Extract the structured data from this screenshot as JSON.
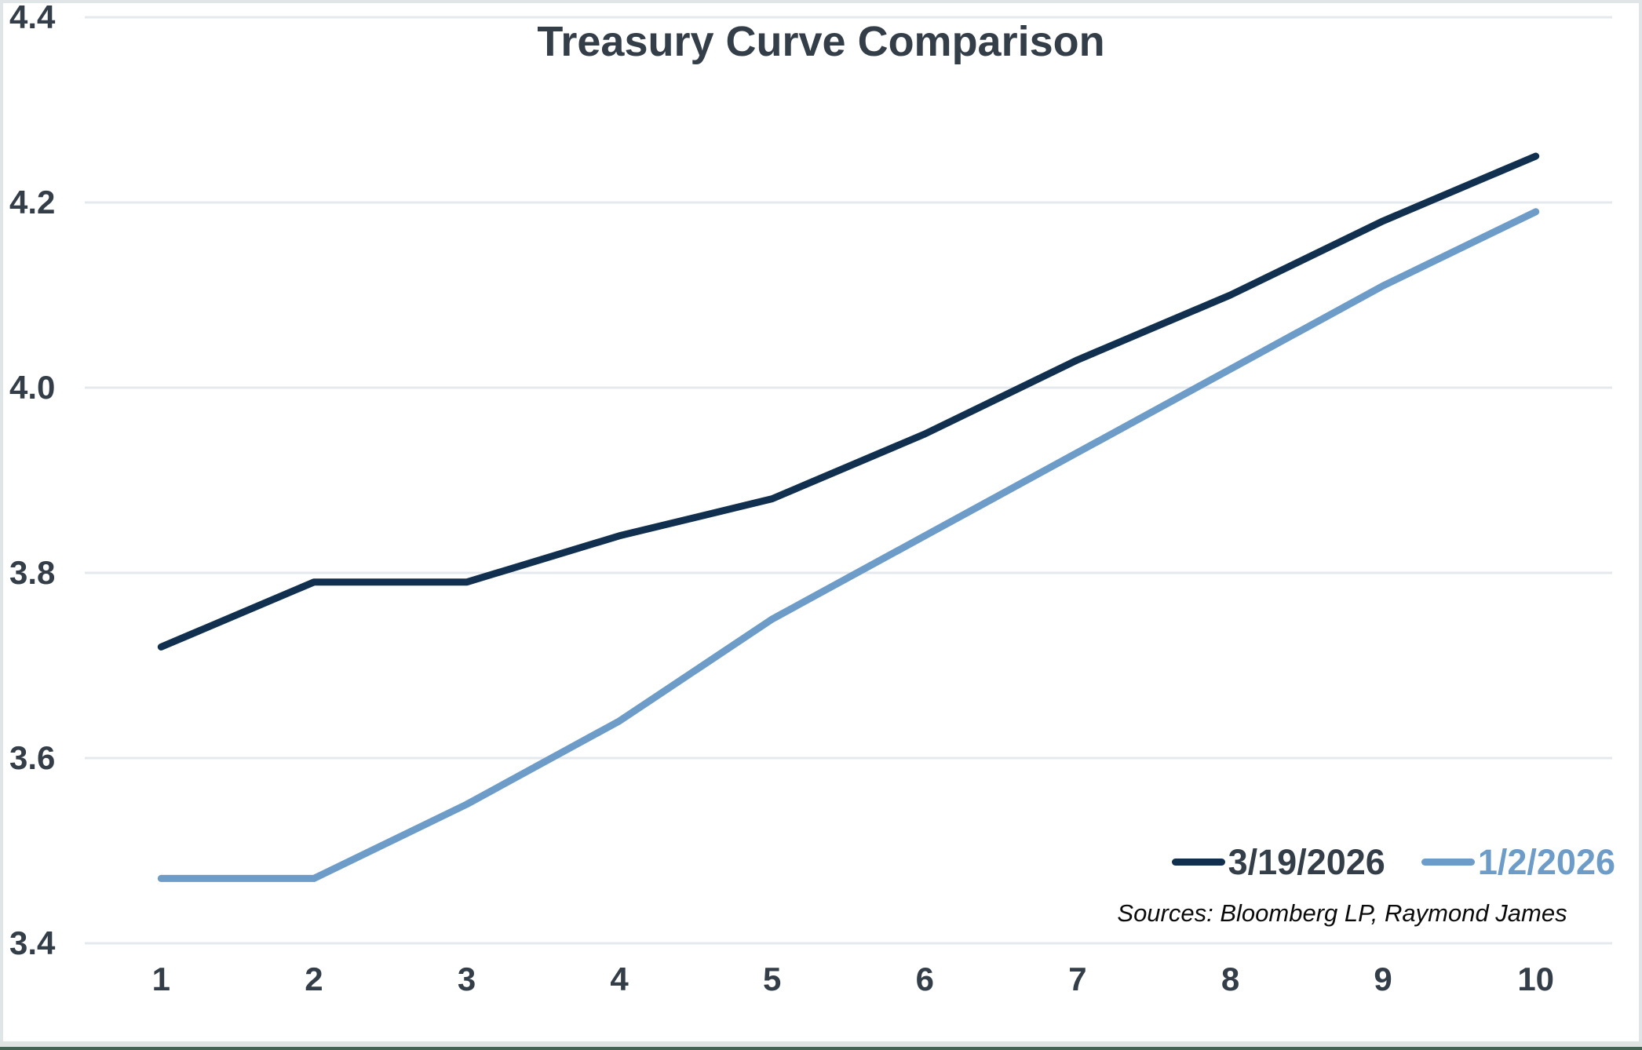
{
  "title": "Treasury Curve Comparison",
  "sources_note": "Sources: Bloomberg LP, Raymond James",
  "colors": {
    "title_text": "#333e48",
    "axis_text": "#333e48",
    "gridline": "#e4e9ed",
    "series_dark_navy": "#11304f",
    "series_light_blue": "#6d9cc8",
    "frame_border": "#e0e6e7",
    "bottom_bar_green": "#456353"
  },
  "chart_data": {
    "type": "line",
    "title": "Treasury Curve Comparison",
    "categories": [
      "1",
      "2",
      "3",
      "4",
      "5",
      "6",
      "7",
      "8",
      "9",
      "10"
    ],
    "series": [
      {
        "name": "3/19/2026",
        "color": "#11304f",
        "label_color": "#333e48",
        "values": [
          3.72,
          3.79,
          3.79,
          3.84,
          3.88,
          3.95,
          4.03,
          4.1,
          4.18,
          4.25
        ]
      },
      {
        "name": "1/2/2026",
        "color": "#6d9cc8",
        "label_color": "#6d9cc8",
        "values": [
          3.47,
          3.47,
          3.55,
          3.64,
          3.75,
          3.84,
          3.93,
          4.02,
          4.11,
          4.19
        ]
      }
    ],
    "xlabel": "",
    "ylabel": "",
    "ylim": [
      3.4,
      4.4
    ],
    "y_ticks": [
      "3.4",
      "3.6",
      "3.8",
      "4.0",
      "4.2",
      "4.4"
    ],
    "grid": "horizontal",
    "legend_position": "bottom-right-inside"
  }
}
